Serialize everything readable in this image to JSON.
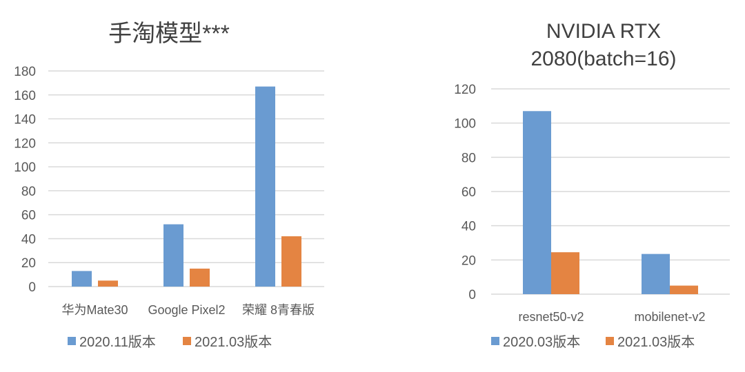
{
  "chart_data": [
    {
      "type": "bar",
      "title": [
        "手淘模型***"
      ],
      "categories": [
        "华为Mate30",
        "Google Pixel2",
        "荣耀 8青春版"
      ],
      "series": [
        {
          "name": "2020.11版本",
          "values": [
            13,
            52,
            167
          ],
          "color": "#6a9bd1"
        },
        {
          "name": "2021.03版本",
          "values": [
            5,
            15,
            42
          ],
          "color": "#e48442"
        }
      ],
      "ylim": [
        0,
        180
      ],
      "yticks": [
        0,
        20,
        40,
        60,
        80,
        100,
        120,
        140,
        160,
        180
      ],
      "grid": true,
      "legend": "bottom"
    },
    {
      "type": "bar",
      "title": [
        "NVIDIA RTX",
        "2080(batch=16)"
      ],
      "categories": [
        "resnet50-v2",
        "mobilenet-v2"
      ],
      "series": [
        {
          "name": "2020.03版本",
          "values": [
            107,
            23.5
          ],
          "color": "#6a9bd1"
        },
        {
          "name": "2021.03版本",
          "values": [
            24.5,
            5
          ],
          "color": "#e48442"
        }
      ],
      "ylim": [
        0,
        120
      ],
      "yticks": [
        0,
        20,
        40,
        60,
        80,
        100,
        120
      ],
      "grid": true,
      "legend": "bottom"
    }
  ]
}
